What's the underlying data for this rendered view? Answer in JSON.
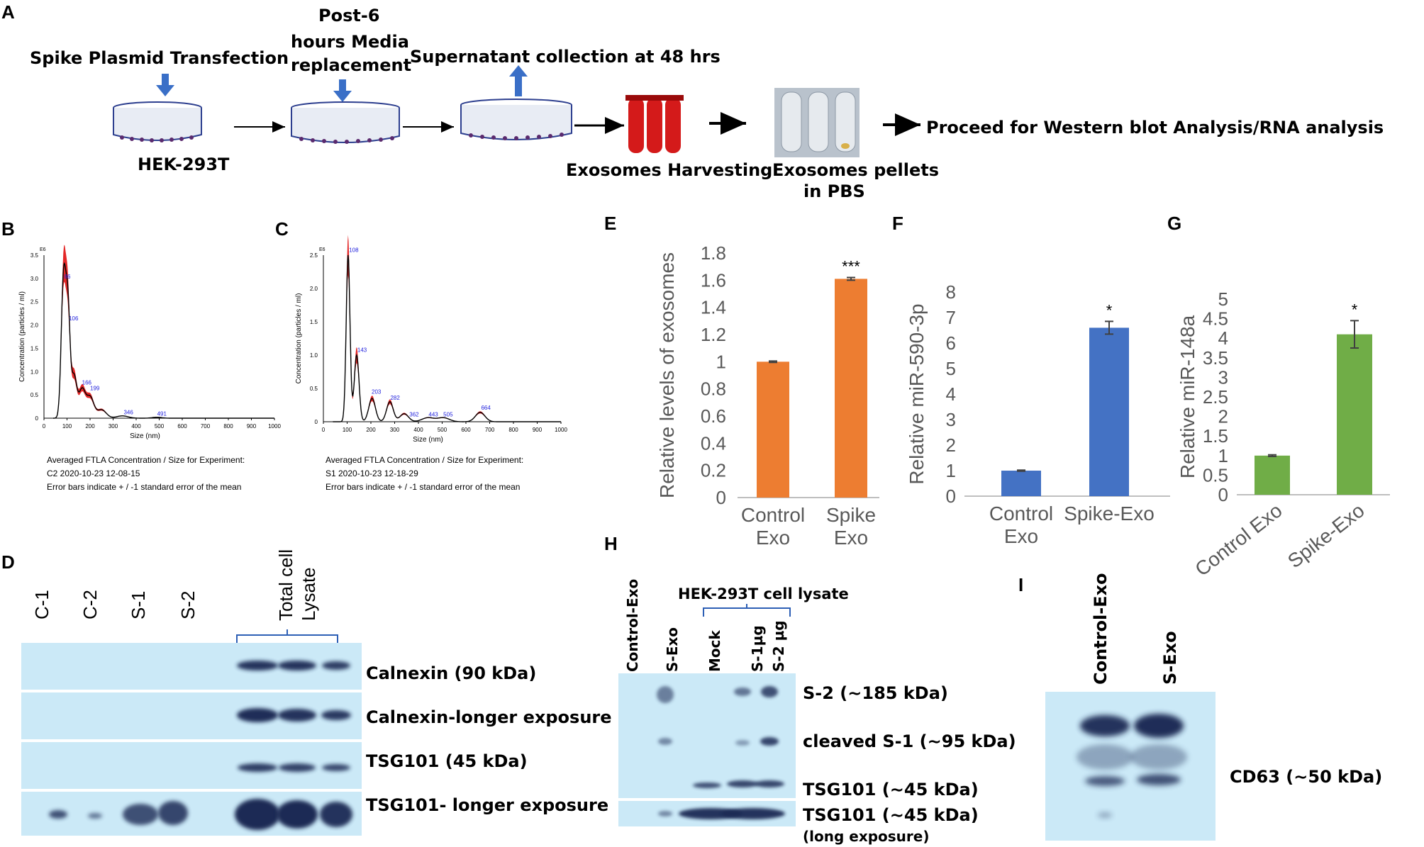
{
  "panels": {
    "a": "A",
    "b": "B",
    "c": "C",
    "d": "D",
    "e": "E",
    "f": "F",
    "g": "G",
    "h": "H",
    "i": "I"
  },
  "workflow": {
    "step1": "Spike Plasmid Transfection",
    "step2_line1": "Post-6",
    "step2_line2": "hours Media",
    "step2_line3": "replacement",
    "step3": "Supernatant collection at 48 hrs",
    "cell_line": "HEK-293T",
    "harvest": "Exosomes Harvesting",
    "pellet_line1": "Exosomes pellets",
    "pellet_line2": "in PBS",
    "proceed": "Proceed for Western blot  Analysis/RNA analysis"
  },
  "nta": {
    "y_unit": "E6",
    "ylabel": "Concentration (particles / ml)",
    "xlabel": "Size (nm)",
    "x_ticks": [
      "0",
      "100",
      "200",
      "300",
      "400",
      "500",
      "600",
      "700",
      "800",
      "900",
      "1000"
    ],
    "b": {
      "y_ticks": [
        "0",
        "0.5",
        "1.0",
        "1.5",
        "2.0",
        "2.5",
        "3.0",
        "3.5"
      ],
      "peak_labels": [
        "86",
        "106",
        "166",
        "199",
        "346",
        "491"
      ],
      "caption_line1": "Averaged FTLA Concentration / Size for Experiment:",
      "caption_line2": "C2 2020-10-23 12-08-15",
      "caption_line3": "Error bars indicate + / -1 standard error of the mean"
    },
    "c": {
      "y_ticks": [
        "0",
        "0.5",
        "1.0",
        "1.5",
        "2.0",
        "2.5"
      ],
      "peak_labels": [
        "108",
        "143",
        "203",
        "282",
        "362",
        "443",
        "505",
        "664"
      ],
      "caption_line1": "Averaged FTLA Concentration / Size for Experiment:",
      "caption_line2": "S1 2020-10-23 12-18-29",
      "caption_line3": "Error bars indicate + / -1 standard error of the mean"
    }
  },
  "chart_data": [
    {
      "type": "bar",
      "panel": "E",
      "categories": [
        "Control Exo",
        "Spike Exo"
      ],
      "values": [
        1.0,
        1.61
      ],
      "errors": [
        0.005,
        0.01
      ],
      "ylabel": "Relative levels of exosomes",
      "ylim": [
        0,
        1.8
      ],
      "y_ticks": [
        "0",
        "0.2",
        "0.4",
        "0.6",
        "0.8",
        "1",
        "1.2",
        "1.4",
        "1.6",
        "1.8"
      ],
      "significance": [
        "",
        "***"
      ],
      "color": "#ED7D31"
    },
    {
      "type": "bar",
      "panel": "F",
      "categories": [
        "Control Exo",
        "Spike-Exo"
      ],
      "values": [
        1.0,
        6.6
      ],
      "errors": [
        0.02,
        0.25
      ],
      "ylabel": "Relative miR-590-3p",
      "ylim": [
        0,
        8
      ],
      "y_ticks": [
        "0",
        "1",
        "2",
        "3",
        "4",
        "5",
        "6",
        "7",
        "8"
      ],
      "significance": [
        "",
        "*"
      ],
      "color": "#4472C4"
    },
    {
      "type": "bar",
      "panel": "G",
      "categories": [
        "Control Exo",
        "Spike-Exo"
      ],
      "values": [
        1.0,
        4.1
      ],
      "errors": [
        0.02,
        0.35
      ],
      "ylabel": "Relative miR-148a",
      "ylim": [
        0,
        5
      ],
      "y_ticks": [
        "0",
        "0.5",
        "1",
        "1.5",
        "2",
        "2.5",
        "3",
        "3.5",
        "4",
        "4.5",
        "5"
      ],
      "significance": [
        "",
        "*"
      ],
      "color": "#70AD47"
    }
  ],
  "blot_d": {
    "lanes": [
      "C-1",
      "C-2",
      "S-1",
      "S-2"
    ],
    "lysate_line1": "Total cell",
    "lysate_line2": "Lysate",
    "rows": [
      "Calnexin (90 kDa)",
      "Calnexin-longer exposure",
      "TSG101 (45 kDa)",
      "TSG101- longer  exposure"
    ]
  },
  "blot_h": {
    "lanes": [
      "Control-Exo",
      "S-Exo",
      "Mock",
      "S-1µg",
      "S-2 µg"
    ],
    "group_label": "HEK-293T cell lysate",
    "rows": [
      "S-2 (∼185 kDa)",
      "cleaved S-1 (∼95 kDa)",
      "TSG101 (∼45 kDa)",
      "TSG101 (∼45 kDa)"
    ],
    "note": "(long exposure)"
  },
  "blot_i": {
    "lanes": [
      "Control-Exo",
      "S-Exo"
    ],
    "row": "CD63 (∼50 kDa)"
  },
  "colors": {
    "film": "#CBE9F7",
    "band": "#1A2A55",
    "nta_fill": "#E01010",
    "arrow_blue": "#3A6FC7",
    "tube_red": "#D41A1A"
  }
}
